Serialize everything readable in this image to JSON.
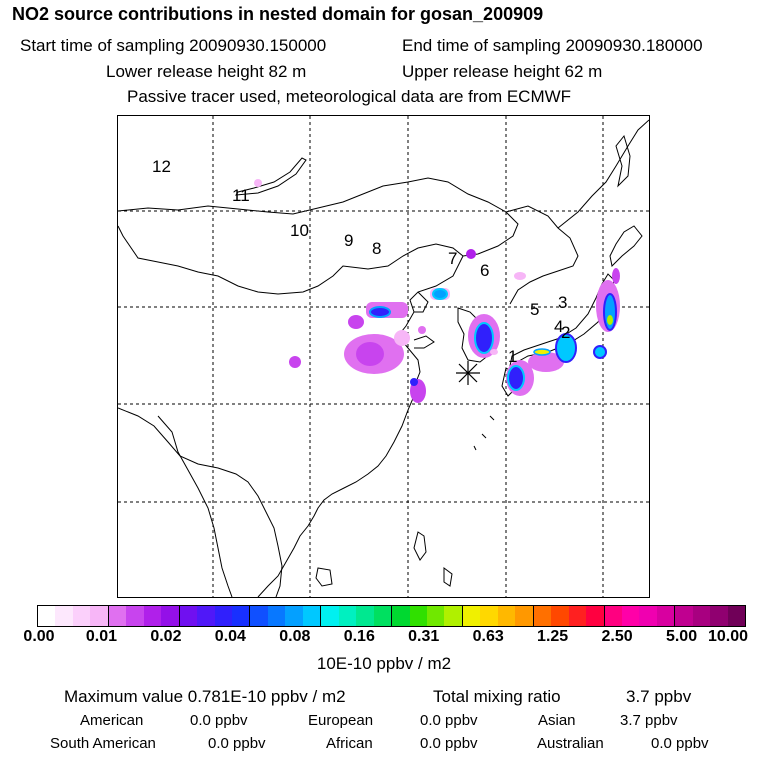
{
  "header": {
    "title": "NO2 source contributions in nested domain for gosan_200909",
    "start_time": "Start time of sampling 20090930.150000",
    "end_time": "End time of sampling 20090930.180000",
    "lower_release": "Lower release height   82 m",
    "upper_release": "Upper release height   62 m",
    "tracer_note": "Passive tracer used, meteorological data are from ECMWF"
  },
  "map": {
    "region_labels": [
      "12",
      "11",
      "10",
      "9",
      "8",
      "7",
      "6",
      "5",
      "3",
      "4",
      "2",
      "1"
    ],
    "receptor_marker": "station-star"
  },
  "colorbar": {
    "colors": [
      "#ffffff",
      "#fde8fd",
      "#fbd0fb",
      "#f7b6f7",
      "#e070f0",
      "#c844ee",
      "#b020ea",
      "#9410e8",
      "#7010f0",
      "#5018f8",
      "#3020fc",
      "#1830ff",
      "#1050ff",
      "#0878ff",
      "#04a0ff",
      "#00c8ff",
      "#00f0f0",
      "#00f0c0",
      "#00e890",
      "#00e060",
      "#00d830",
      "#30e000",
      "#70e800",
      "#b0f000",
      "#f0f000",
      "#ffd800",
      "#ffb800",
      "#ff9800",
      "#ff7000",
      "#ff4800",
      "#ff2020",
      "#ff0040",
      "#ff0080",
      "#ff00a8",
      "#f000b0",
      "#d800a0",
      "#c00090",
      "#a80080",
      "#900070",
      "#700058"
    ],
    "ticks": [
      "0.00",
      "0.01",
      "0.02",
      "0.04",
      "0.08",
      "0.16",
      "0.31",
      "0.63",
      "1.25",
      "2.50",
      "5.00",
      "10.00"
    ],
    "unit": "10E-10 ppbv / m2"
  },
  "summary": {
    "max_label": "Maximum value  0.781E-10 ppbv / m2",
    "total_label": "Total mixing ratio",
    "total_value": "3.7 ppbv",
    "regions": [
      {
        "name": "American",
        "value": "0.0 ppbv"
      },
      {
        "name": "European",
        "value": "0.0 ppbv"
      },
      {
        "name": "Asian",
        "value": "3.7 ppbv"
      },
      {
        "name": "South American",
        "value": "0.0 ppbv"
      },
      {
        "name": "African",
        "value": "0.0 ppbv"
      },
      {
        "name": "Australian",
        "value": "0.0 ppbv"
      }
    ]
  }
}
